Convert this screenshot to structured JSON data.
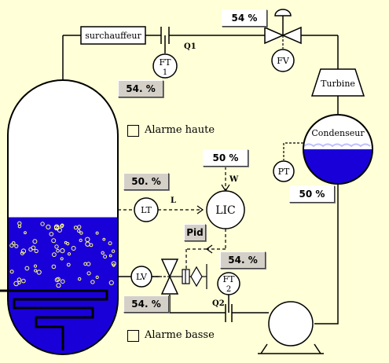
{
  "equipment": {
    "superheater": "surchauffeur",
    "turbine": "Turbine",
    "condenser": "Condenseur"
  },
  "instruments": {
    "ft1": {
      "name": "FT",
      "number": "1"
    },
    "fv": "FV",
    "pt": "PT",
    "lt": "LT",
    "lic": "LIC",
    "lv": "LV",
    "ft2": {
      "name": "FT",
      "number": "2"
    }
  },
  "signals": {
    "q1": "Q1",
    "q2": "Q2",
    "w": "W",
    "l": "L"
  },
  "readouts": {
    "top_valve": "54 %",
    "steam_flow": "54. %",
    "setpoint": "50 %",
    "level": "50. %",
    "controller_mode": "Pid",
    "controller_output": "54. %",
    "condenser_level": "50 %",
    "feed_flow": "54. %"
  },
  "alarms": {
    "high": {
      "label": "Alarme haute",
      "checked": false
    },
    "low": {
      "label": "Alarme basse",
      "checked": false
    }
  },
  "levels": {
    "drum": 0.5,
    "condenser": 0.5
  },
  "colors": {
    "background": "#ffffd8",
    "liquid": "#1a00d8",
    "bubbles": "#ffff80",
    "readout_bg": "#d4d0c8"
  }
}
